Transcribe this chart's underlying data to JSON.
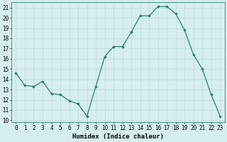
{
  "x": [
    0,
    1,
    2,
    3,
    4,
    5,
    6,
    7,
    8,
    9,
    10,
    11,
    12,
    13,
    14,
    15,
    16,
    17,
    18,
    19,
    20,
    21,
    22,
    23
  ],
  "y": [
    14.6,
    13.4,
    13.3,
    13.8,
    12.6,
    12.5,
    11.9,
    11.6,
    10.4,
    13.3,
    16.2,
    17.2,
    17.2,
    18.6,
    20.2,
    20.2,
    21.1,
    21.1,
    20.4,
    18.8,
    16.4,
    15.0,
    12.5,
    10.4
  ],
  "line_color": "#2e7d6e",
  "marker": "D",
  "marker_size": 1.8,
  "bg_color": "#d6eeee",
  "grid_color": "#b8d8d8",
  "xlabel": "Humidex (Indice chaleur)",
  "xlim": [
    -0.5,
    23.5
  ],
  "ylim": [
    9.8,
    21.5
  ],
  "yticks": [
    10,
    11,
    12,
    13,
    14,
    15,
    16,
    17,
    18,
    19,
    20,
    21
  ],
  "xticks": [
    0,
    1,
    2,
    3,
    4,
    5,
    6,
    7,
    8,
    9,
    10,
    11,
    12,
    13,
    14,
    15,
    16,
    17,
    18,
    19,
    20,
    21,
    22,
    23
  ],
  "tick_fontsize": 5.5,
  "xlabel_fontsize": 6.5,
  "linewidth": 0.9
}
